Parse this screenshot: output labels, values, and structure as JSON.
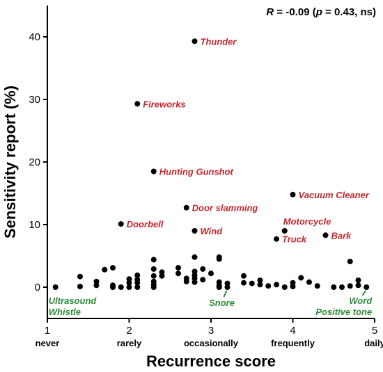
{
  "chart_data": {
    "type": "scatter",
    "xlabel": "Recurrence score",
    "ylabel": "Sensitivity report (%)",
    "xlim": [
      1,
      5
    ],
    "ylim": [
      -5,
      45
    ],
    "xticks": [
      1,
      2,
      3,
      4,
      5
    ],
    "yticks": [
      0,
      10,
      20,
      30,
      40
    ],
    "x_category_labels": [
      "never",
      "rarely",
      "occasionally",
      "frequently",
      "daily"
    ],
    "stat": {
      "R_symbol": "R",
      "R_text": " = -0.09 (",
      "p_symbol": "p",
      "p_text": " = 0.43, ns)"
    },
    "colors": {
      "red_label": "#c0272d",
      "green_label": "#2e8b3a",
      "point": "#000000"
    },
    "points": [
      [
        1.1,
        0
      ],
      [
        1.4,
        1.7
      ],
      [
        1.4,
        0.1
      ],
      [
        1.6,
        0.9
      ],
      [
        1.6,
        0.3
      ],
      [
        1.7,
        2.8
      ],
      [
        1.8,
        3.1
      ],
      [
        1.8,
        0.3
      ],
      [
        1.8,
        0
      ],
      [
        1.9,
        0
      ],
      [
        2.0,
        1.3
      ],
      [
        2.0,
        0.7
      ],
      [
        2.0,
        0
      ],
      [
        2.1,
        1.9
      ],
      [
        2.1,
        1.2
      ],
      [
        2.1,
        0.7
      ],
      [
        2.1,
        0
      ],
      [
        2.3,
        4.4
      ],
      [
        2.3,
        2.9
      ],
      [
        2.3,
        1.8
      ],
      [
        2.3,
        0.9
      ],
      [
        2.3,
        0.4
      ],
      [
        2.3,
        0
      ],
      [
        2.4,
        2.4
      ],
      [
        2.4,
        1.8
      ],
      [
        2.6,
        3.1
      ],
      [
        2.6,
        2.2
      ],
      [
        2.7,
        1.4
      ],
      [
        2.7,
        0.9
      ],
      [
        2.8,
        4.8
      ],
      [
        2.8,
        2.5
      ],
      [
        2.8,
        1.9
      ],
      [
        2.8,
        1.4
      ],
      [
        2.8,
        0.8
      ],
      [
        2.9,
        2.9
      ],
      [
        2.9,
        1.2
      ],
      [
        3.0,
        2.2
      ],
      [
        3.1,
        4.8
      ],
      [
        3.1,
        4.5
      ],
      [
        3.1,
        0.8
      ],
      [
        3.1,
        0.3
      ],
      [
        3.1,
        0
      ],
      [
        3.2,
        0.6
      ],
      [
        3.2,
        0
      ],
      [
        3.4,
        1.8
      ],
      [
        3.4,
        0.7
      ],
      [
        3.5,
        0.6
      ],
      [
        3.6,
        1.1
      ],
      [
        3.6,
        0.4
      ],
      [
        3.7,
        0.2
      ],
      [
        3.8,
        0.4
      ],
      [
        3.9,
        0
      ],
      [
        4.0,
        0.7
      ],
      [
        4.0,
        0.1
      ],
      [
        4.1,
        1.5
      ],
      [
        4.2,
        0.8
      ],
      [
        4.3,
        0.2
      ],
      [
        4.5,
        0
      ],
      [
        4.6,
        0
      ],
      [
        4.7,
        4.1
      ],
      [
        4.7,
        0.2
      ],
      [
        4.8,
        1.1
      ],
      [
        4.8,
        0.3
      ],
      [
        4.9,
        0
      ],
      [
        2.8,
        39.3
      ],
      [
        2.1,
        29.3
      ],
      [
        2.3,
        18.5
      ],
      [
        4.0,
        14.8
      ],
      [
        2.7,
        12.7
      ],
      [
        1.9,
        10.1
      ],
      [
        2.8,
        9.0
      ],
      [
        3.9,
        9.0
      ],
      [
        3.8,
        7.7
      ],
      [
        4.4,
        8.3
      ]
    ],
    "annotations": [
      {
        "text": "Thunder",
        "x": 2.8,
        "y": 39.3,
        "color": "red",
        "position": "right"
      },
      {
        "text": "Fireworks",
        "x": 2.1,
        "y": 29.3,
        "color": "red",
        "position": "right"
      },
      {
        "text": "Hunting Gunshot",
        "x": 2.3,
        "y": 18.5,
        "color": "red",
        "position": "right"
      },
      {
        "text": "Vacuum Cleaner",
        "x": 4.0,
        "y": 14.8,
        "color": "red",
        "position": "right"
      },
      {
        "text": "Door slamming",
        "x": 2.7,
        "y": 12.7,
        "color": "red",
        "position": "right"
      },
      {
        "text": "Doorbell",
        "x": 1.9,
        "y": 10.1,
        "color": "red",
        "position": "right"
      },
      {
        "text": "Wind",
        "x": 2.8,
        "y": 9.0,
        "color": "red",
        "position": "right"
      },
      {
        "text": "Motorcycle",
        "x": 3.9,
        "y": 9.0,
        "color": "red",
        "position": "above-right"
      },
      {
        "text": "Truck",
        "x": 3.8,
        "y": 7.7,
        "color": "red",
        "position": "right"
      },
      {
        "text": "Bark",
        "x": 4.4,
        "y": 8.3,
        "color": "red",
        "position": "right"
      },
      {
        "text": "Ultrasound\nWhistle",
        "x": 1.1,
        "y": 0,
        "color": "green",
        "position": "below-left"
      },
      {
        "text": "Snore",
        "x": 3.2,
        "y": 0,
        "color": "green",
        "position": "below"
      },
      {
        "text": "Word\nPositive tone",
        "x": 4.9,
        "y": 0,
        "color": "green",
        "position": "below-right"
      }
    ]
  }
}
